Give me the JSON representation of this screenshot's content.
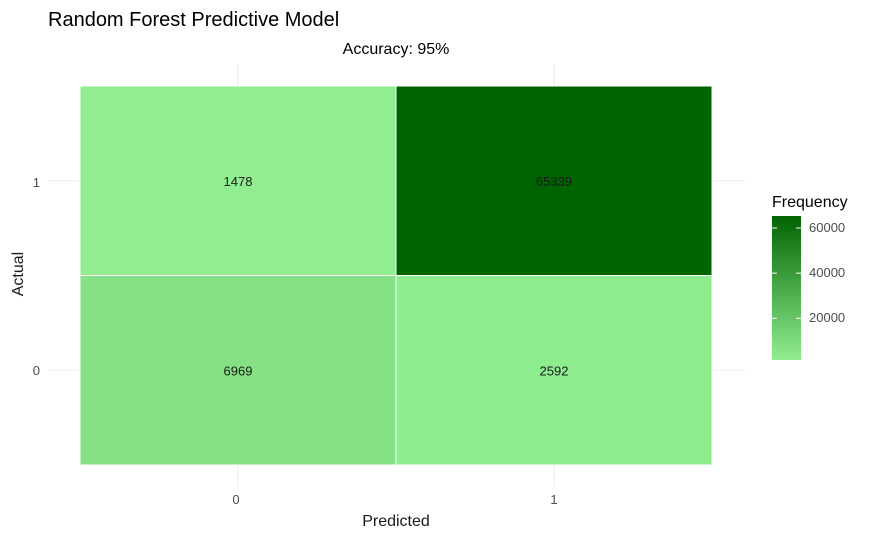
{
  "chart_data": {
    "type": "heatmap",
    "title": "Random Forest Predictive Model",
    "subtitle": "Accuracy: 95%",
    "xlabel": "Predicted",
    "ylabel": "Actual",
    "x_categories": [
      "0",
      "1"
    ],
    "y_categories": [
      "0",
      "1"
    ],
    "cells": [
      {
        "predicted": "0",
        "actual": "1",
        "value": 1478
      },
      {
        "predicted": "1",
        "actual": "1",
        "value": 65339
      },
      {
        "predicted": "0",
        "actual": "0",
        "value": 6969
      },
      {
        "predicted": "1",
        "actual": "0",
        "value": 2592
      }
    ],
    "colors": {
      "low": "#90ee90",
      "high": "#006400"
    },
    "grid": true,
    "legend": {
      "title": "Frequency",
      "ticks": [
        20000,
        40000,
        60000
      ],
      "tick_labels": [
        "20000",
        "40000",
        "60000"
      ],
      "placement": "right"
    }
  }
}
